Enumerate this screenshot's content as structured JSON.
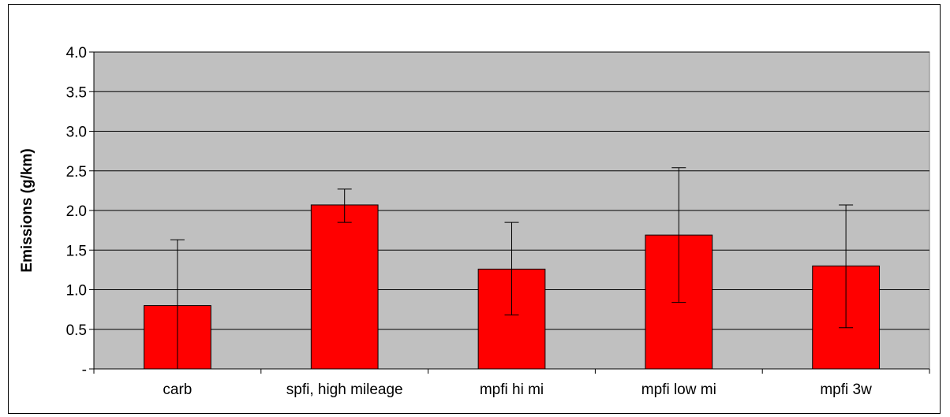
{
  "chart_data": {
    "type": "bar",
    "title": "",
    "xlabel": "",
    "ylabel": "Emissions (g/km)",
    "ylim": [
      0,
      4.0
    ],
    "y_ticks": [
      {
        "value": 0,
        "label": "-"
      },
      {
        "value": 0.5,
        "label": "0.5"
      },
      {
        "value": 1.0,
        "label": "1.0"
      },
      {
        "value": 1.5,
        "label": "1.5"
      },
      {
        "value": 2.0,
        "label": "2.0"
      },
      {
        "value": 2.5,
        "label": "2.5"
      },
      {
        "value": 3.0,
        "label": "3.0"
      },
      {
        "value": 3.5,
        "label": "3.5"
      },
      {
        "value": 4.0,
        "label": "4.0"
      }
    ],
    "categories": [
      "carb",
      "spfi, high mileage",
      "mpfi hi mi",
      "mpfi low mi",
      "mpfi 3w"
    ],
    "values": [
      0.8,
      2.07,
      1.26,
      1.69,
      1.3
    ],
    "error_low": [
      0.0,
      1.85,
      0.68,
      0.84,
      0.52
    ],
    "error_high": [
      1.63,
      2.27,
      1.85,
      2.54,
      2.07
    ],
    "grid": true,
    "legend": "none",
    "colors": {
      "bar": "#ff0000",
      "plot_background": "#c0c0c0",
      "gridline": "#000000"
    }
  }
}
